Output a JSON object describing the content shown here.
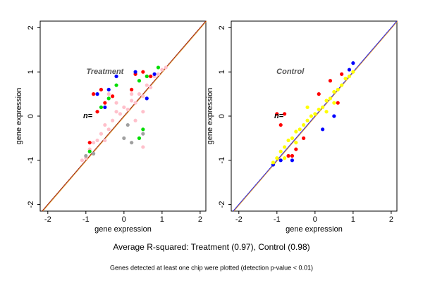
{
  "charts": [
    {
      "type": "scatter",
      "annotation": "Treatment",
      "annotation_xy": [
        -0.5,
        1.0
      ],
      "marker_note": "n=",
      "marker_note_xy": [
        -0.95,
        0.0
      ],
      "xlabel": "gene expression",
      "ylabel": "gene expression",
      "xlim": [
        -2.2,
        2.15
      ],
      "ylim": [
        -2.15,
        2.15
      ],
      "xticks": [
        -2,
        -1,
        0,
        1,
        2
      ],
      "yticks": [
        -2,
        -1,
        0,
        1,
        2
      ],
      "diagonal_colors": [
        "#8b0000",
        "#e0a040"
      ],
      "series": [
        {
          "color": "#ffc0cb",
          "x": [
            -1.1,
            -1,
            -0.9,
            -0.8,
            -0.7,
            -0.6,
            -0.5,
            -0.4,
            -0.3,
            -0.2,
            -0.1,
            0,
            0.1,
            0.2,
            0.3,
            0.4,
            0.5,
            0.6,
            0.7,
            0.8,
            0.9,
            1.0,
            1.1,
            -0.5,
            0.3,
            0.5,
            -0.2,
            0.2,
            0.6,
            0.5,
            -0.4
          ],
          "y": [
            -1.0,
            -0.95,
            -0.75,
            -0.6,
            -0.55,
            -0.4,
            -0.2,
            -0.3,
            -0.1,
            0.1,
            0.05,
            0.2,
            0.15,
            0.35,
            0.3,
            0.5,
            0.45,
            0.7,
            0.65,
            0.9,
            0.95,
            1.05,
            1.1,
            -0.55,
            -0.1,
            0.1,
            0.3,
            0.5,
            0.9,
            -0.7,
            0.5
          ]
        },
        {
          "color": "#ff0000",
          "x": [
            -0.8,
            -0.6,
            -0.5,
            -0.7,
            0.3,
            0.5,
            -0.9,
            0.2,
            -0.3,
            0.7
          ],
          "y": [
            0.5,
            0.6,
            0.3,
            0.1,
            0.95,
            1.0,
            -0.6,
            0.6,
            0.45,
            0.9
          ]
        },
        {
          "color": "#0000ff",
          "x": [
            -0.4,
            -0.2,
            -0.7,
            0.3,
            0.8,
            -0.5,
            0.6
          ],
          "y": [
            0.6,
            0.9,
            0.5,
            1.0,
            0.95,
            0.2,
            0.4
          ]
        },
        {
          "color": "#00dd00",
          "x": [
            -0.6,
            -0.4,
            0.4,
            0.9,
            -0.9,
            0.5,
            0.4,
            -0.2,
            0.6
          ],
          "y": [
            0.2,
            0.4,
            0.8,
            1.1,
            -0.8,
            -0.3,
            -0.5,
            0.7,
            0.9
          ]
        },
        {
          "color": "#a0a0a0",
          "x": [
            0.2,
            0.0,
            -0.8,
            0.5,
            -1.0,
            0.1
          ],
          "y": [
            -0.6,
            -0.5,
            -0.85,
            -0.4,
            -0.9,
            -0.2
          ]
        }
      ]
    },
    {
      "type": "scatter",
      "annotation": "Control",
      "annotation_xy": [
        -0.65,
        1.0
      ],
      "marker_note": "n=",
      "marker_note_xy": [
        -0.95,
        0.0
      ],
      "xlabel": "gene expression",
      "ylabel": "gene expression",
      "xlim": [
        -2.2,
        2.15
      ],
      "ylim": [
        -2.15,
        2.15
      ],
      "xticks": [
        -2,
        -1,
        0,
        1,
        2
      ],
      "yticks": [
        -2,
        -1,
        0,
        1,
        2
      ],
      "diagonal_colors": [
        "#0000ff",
        "#e0a040"
      ],
      "series": [
        {
          "color": "#ff0000",
          "x": [
            -1.0,
            -0.9,
            -0.7,
            -0.5,
            -0.3,
            0.1,
            0.4,
            0.7,
            -0.8,
            -0.6,
            0.6
          ],
          "y": [
            0.05,
            -0.2,
            -0.9,
            -0.75,
            -0.5,
            0.5,
            0.8,
            0.95,
            0.05,
            -0.9,
            0.3
          ]
        },
        {
          "color": "#0000ff",
          "x": [
            -1.1,
            -0.9,
            0.2,
            0.5,
            0.9,
            1.0,
            -0.6
          ],
          "y": [
            -1.1,
            -1.0,
            -0.3,
            0.0,
            1.05,
            1.2,
            -1.0
          ]
        },
        {
          "color": "#ffff00",
          "x": [
            -1.1,
            -1,
            -0.9,
            -0.8,
            -0.7,
            -0.6,
            -0.5,
            -0.4,
            -0.3,
            -0.2,
            -0.1,
            0,
            0.1,
            0.2,
            0.3,
            0.4,
            0.5,
            0.6,
            0.7,
            0.8,
            0.9,
            1.0,
            -0.5,
            0.3,
            -0.2,
            0.5,
            -0.8
          ],
          "y": [
            -1.05,
            -0.95,
            -0.8,
            -0.7,
            -0.55,
            -0.5,
            -0.35,
            -0.3,
            -0.2,
            -0.1,
            0.0,
            0.05,
            0.15,
            0.2,
            0.35,
            0.4,
            0.55,
            0.6,
            0.7,
            0.85,
            0.9,
            1.0,
            -0.6,
            0.1,
            0.2,
            0.3,
            -0.95
          ]
        }
      ]
    }
  ],
  "caption": "Average R-squared: Treatment (0.97), Control (0.98)",
  "footnote": "Genes detected at least one chip were plotted (detection p-value < 0.01)"
}
